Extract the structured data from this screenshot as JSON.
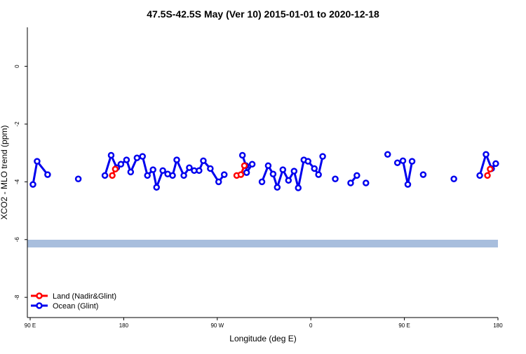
{
  "chart_data": {
    "type": "line",
    "title": "47.5S-42.5S May (Ver 10)   2015-01-01 to 2020-12-18",
    "x_label": "Longitude (deg E)",
    "y_label": "XCO2 - MLO trend (ppm)",
    "xlim": [
      87.3,
      540
    ],
    "ylim": [
      -8.7,
      1.35
    ],
    "xticks": [
      {
        "value": 90,
        "label": "90 E"
      },
      {
        "value": 180,
        "label": "180"
      },
      {
        "value": 270,
        "label": "90 W"
      },
      {
        "value": 360,
        "label": "0"
      },
      {
        "value": 450,
        "label": "90 E"
      },
      {
        "value": 540,
        "label": "180"
      }
    ],
    "yticks": [
      0,
      -2,
      -4,
      -6,
      -8
    ],
    "legend": "bottom-left",
    "series": [
      {
        "name": "Land (Nadir&Glint)",
        "color": "#ff0000",
        "x": [
          169.0,
          171.9,
          null,
          288.7,
          292.7,
          296.1,
          null,
          529.9,
          532.5
        ],
        "values": [
          -3.78,
          -3.56,
          null,
          -3.78,
          -3.75,
          -3.44,
          null,
          -3.78,
          -3.56
        ]
      },
      {
        "name": "Ocean (Glint)",
        "color": "#0000ee",
        "x": [
          92.7,
          96.7,
          106.8,
          null,
          136.3,
          null,
          161.9,
          167.9,
          173.3,
          177.3,
          182.7,
          186.7,
          192.8,
          198.1,
          202.8,
          208.2,
          211.6,
          217.6,
          222.3,
          227.0,
          231.0,
          237.8,
          243.1,
          247.8,
          252.5,
          256.6,
          263.3,
          271.3,
          276.7,
          null,
          294.2,
          297.6,
          298.2,
          303.6,
          null,
          313.0,
          319.0,
          323.7,
          327.7,
          333.1,
          338.5,
          343.9,
          347.9,
          353.3,
          357.3,
          363.4,
          367.4,
          371.4,
          null,
          383.5,
          null,
          398.3,
          404.3,
          null,
          413.0,
          null,
          433.9,
          null,
          443.3,
          448.6,
          453.3,
          457.4,
          null,
          468.1,
          null,
          497.6,
          null,
          522.5,
          528.5,
          533.9,
          537.9
        ],
        "values": [
          -4.09,
          -3.29,
          -3.75,
          null,
          -3.9,
          null,
          -3.78,
          -3.08,
          -3.51,
          -3.39,
          -3.24,
          -3.66,
          -3.17,
          -3.12,
          -3.78,
          -3.58,
          -4.19,
          -3.61,
          -3.73,
          -3.78,
          -3.24,
          -3.78,
          -3.51,
          -3.61,
          -3.61,
          -3.27,
          -3.54,
          -4.0,
          -3.75,
          null,
          -3.08,
          -3.44,
          -3.68,
          -3.39,
          null,
          -4.0,
          -3.44,
          -3.73,
          -4.19,
          -3.58,
          -3.95,
          -3.63,
          -4.21,
          -3.24,
          -3.29,
          -3.54,
          -3.75,
          -3.12,
          null,
          -3.9,
          null,
          -4.04,
          -3.78,
          null,
          -4.04,
          null,
          -3.05,
          null,
          -3.34,
          -3.27,
          -4.09,
          -3.29,
          null,
          -3.75,
          null,
          -3.9,
          null,
          -3.78,
          -3.05,
          -3.54,
          -3.37
        ]
      }
    ]
  }
}
